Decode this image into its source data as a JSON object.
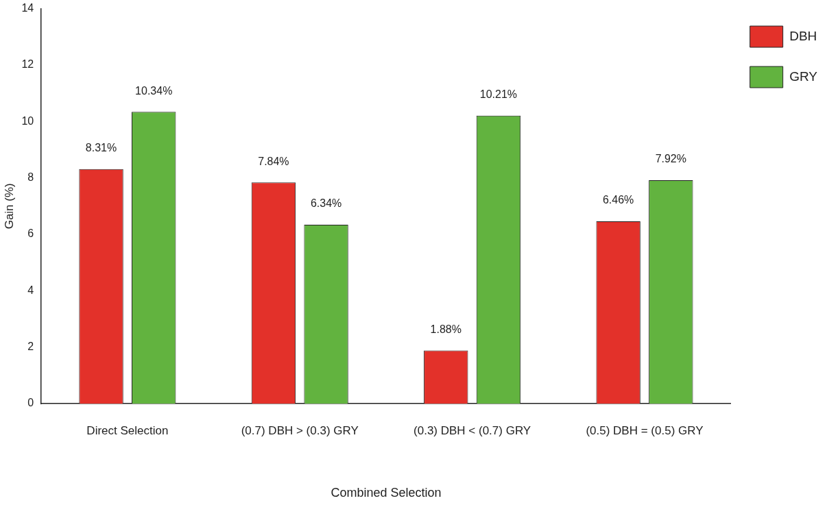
{
  "chart_data": {
    "type": "bar",
    "xlabel": "Combined Selection",
    "ylabel": "Gain (%)",
    "categories": [
      "Direct Selection",
      "(0.7) DBH > (0.3) GRY",
      "(0.3) DBH < (0.7) GRY",
      "(0.5) DBH = (0.5) GRY"
    ],
    "series": [
      {
        "name": "DBH",
        "color": "#e3312a",
        "values": [
          8.31,
          7.84,
          1.88,
          6.46
        ],
        "value_labels": [
          "8.31%",
          "7.84%",
          "1.88%",
          "6.46%"
        ]
      },
      {
        "name": "GRY",
        "color": "#62b33f",
        "values": [
          10.34,
          6.34,
          10.21,
          7.92
        ],
        "value_labels": [
          "10.34%",
          "6.34%",
          "10.21%",
          "7.92%"
        ]
      }
    ],
    "ylim": [
      0,
      14
    ],
    "yticks": [
      0,
      2,
      4,
      6,
      8,
      10,
      12,
      14
    ],
    "grid": false,
    "legend": "top right"
  }
}
